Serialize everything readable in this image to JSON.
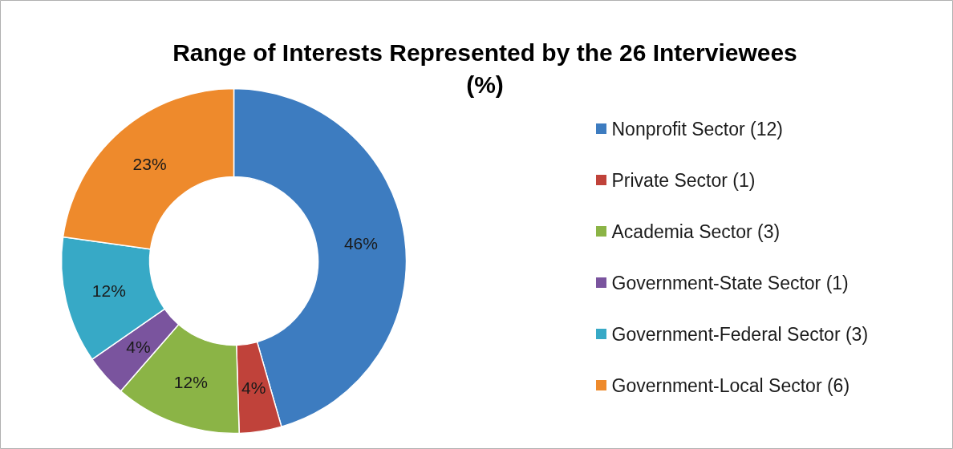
{
  "chart_data": {
    "type": "donut",
    "title": "Range of Interests Represented by the 26 Interviewees (%)",
    "categories": [
      "Nonprofit Sector (12)",
      "Private Sector (1)",
      "Academia Sector (3)",
      "Government-State Sector (1)",
      "Government-Federal Sector (3)",
      "Government-Local Sector (6)"
    ],
    "values": [
      46,
      4,
      12,
      4,
      12,
      23
    ],
    "colors": [
      "#3d7cc0",
      "#c0423a",
      "#8bb446",
      "#7a549e",
      "#37a9c6",
      "#ee8a2c"
    ],
    "value_labels": [
      "46%",
      "4%",
      "12%",
      "4%",
      "12%",
      "23%"
    ],
    "legend": "right"
  }
}
